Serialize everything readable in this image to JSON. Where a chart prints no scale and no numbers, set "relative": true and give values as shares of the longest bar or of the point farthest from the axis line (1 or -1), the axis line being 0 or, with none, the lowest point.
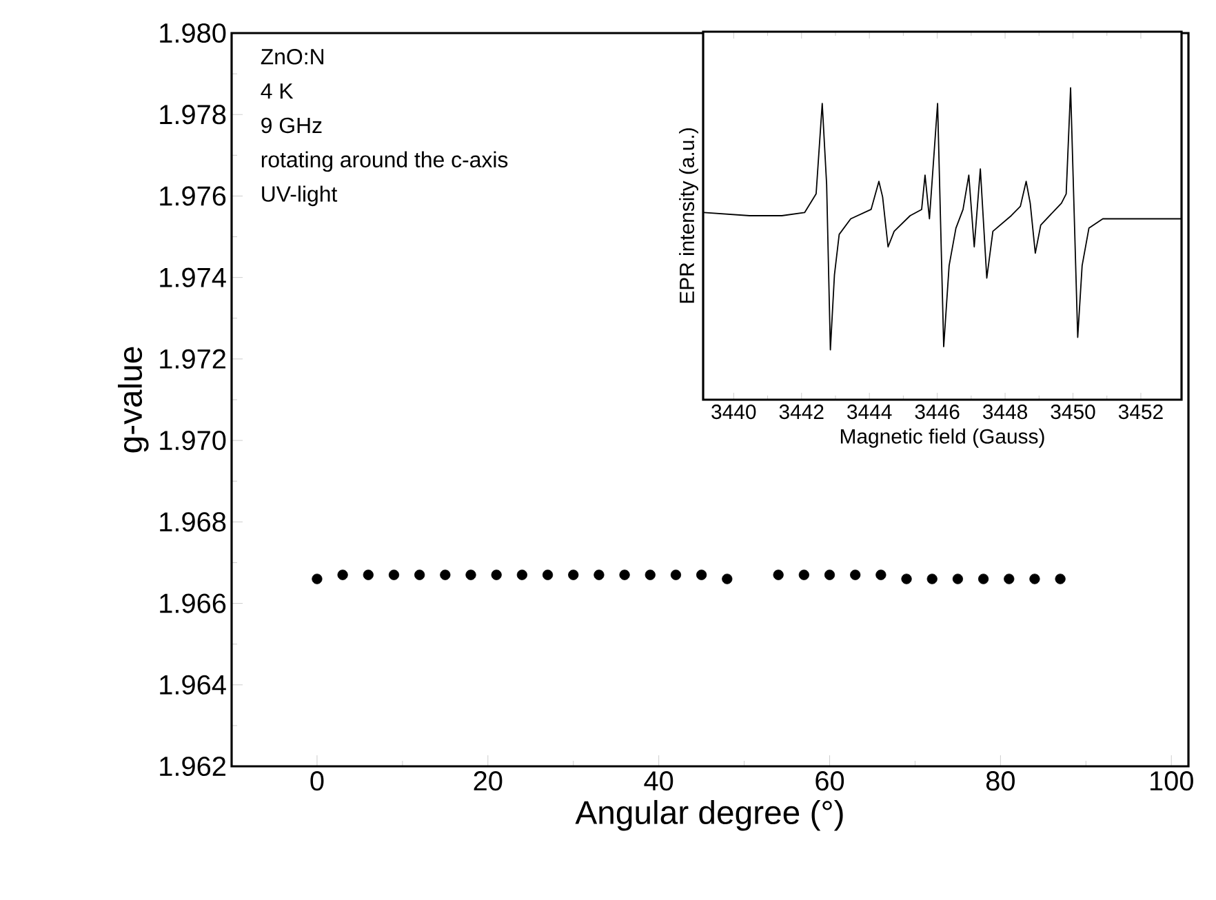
{
  "chart_data": [
    {
      "type": "scatter",
      "xlabel": "Angular degree (°)",
      "ylabel": "g-value",
      "marker": "circle",
      "xlim": [
        -10,
        102
      ],
      "xticks": [
        0,
        20,
        40,
        60,
        80,
        100
      ],
      "ylim": [
        1.962,
        1.98
      ],
      "yticks": [
        {
          "value": 1.962,
          "label": "1.962"
        },
        {
          "value": 1.964,
          "label": "1.964"
        },
        {
          "value": 1.966,
          "label": "1.966"
        },
        {
          "value": 1.968,
          "label": "1.968"
        },
        {
          "value": 1.97,
          "label": "1.970"
        },
        {
          "value": 1.972,
          "label": "1.972"
        },
        {
          "value": 1.974,
          "label": "1.974"
        },
        {
          "value": 1.976,
          "label": "1.976"
        },
        {
          "value": 1.978,
          "label": "1.978"
        },
        {
          "value": 1.98,
          "label": "1.980"
        }
      ],
      "annotations": [
        "ZnO:N",
        "4 K",
        "9 GHz",
        "rotating around the c-axis",
        "UV-light"
      ],
      "series": [
        {
          "color": "#000000",
          "x": [
            0,
            3,
            6,
            9,
            12,
            15,
            18,
            21,
            24,
            27,
            30,
            33,
            36,
            39,
            42,
            45,
            48,
            54,
            57,
            60,
            63,
            66,
            69,
            72,
            75,
            78,
            81,
            84,
            87
          ],
          "values": [
            1.9666,
            1.9667,
            1.9667,
            1.9667,
            1.9667,
            1.9667,
            1.9667,
            1.9667,
            1.9667,
            1.9667,
            1.9667,
            1.9667,
            1.9667,
            1.9667,
            1.9667,
            1.9667,
            1.9666,
            1.9667,
            1.9667,
            1.9667,
            1.9667,
            1.9667,
            1.9666,
            1.9666,
            1.9666,
            1.9666,
            1.9666,
            1.9666,
            1.9666
          ]
        }
      ]
    },
    {
      "type": "line",
      "relative": true,
      "xlabel": "Magnetic field (Gauss)",
      "ylabel": "EPR intensity (a.u.)",
      "marker": "none",
      "line_style": "solid",
      "xlim": [
        3439.1,
        3453.2
      ],
      "xticks": [
        3440,
        3442,
        3444,
        3446,
        3448,
        3450,
        3452
      ],
      "series": [
        {
          "color": "#000000",
          "x": [
            3439.12,
            3440.47,
            3441.42,
            3442.09,
            3442.43,
            3442.61,
            3442.74,
            3442.85,
            3442.97,
            3443.11,
            3443.45,
            3444.05,
            3444.28,
            3444.39,
            3444.55,
            3444.73,
            3445.2,
            3445.54,
            3445.64,
            3445.77,
            3446.01,
            3446.19,
            3446.35,
            3446.55,
            3446.76,
            3446.93,
            3447.09,
            3447.27,
            3447.46,
            3447.64,
            3448.18,
            3448.45,
            3448.62,
            3448.74,
            3448.89,
            3449.05,
            3449.66,
            3449.8,
            3449.93,
            3450.14,
            3450.27,
            3450.47,
            3450.88,
            3451.96,
            3453.18
          ],
          "values": [
            0.6,
            0.59,
            0.59,
            0.6,
            0.66,
            0.95,
            0.69,
            0.16,
            0.4,
            0.53,
            0.58,
            0.61,
            0.7,
            0.65,
            0.49,
            0.54,
            0.59,
            0.61,
            0.72,
            0.58,
            0.95,
            0.17,
            0.43,
            0.55,
            0.61,
            0.72,
            0.49,
            0.74,
            0.39,
            0.54,
            0.59,
            0.62,
            0.7,
            0.63,
            0.47,
            0.56,
            0.63,
            0.66,
            1.0,
            0.2,
            0.43,
            0.55,
            0.58,
            0.58,
            0.58
          ]
        }
      ]
    }
  ]
}
